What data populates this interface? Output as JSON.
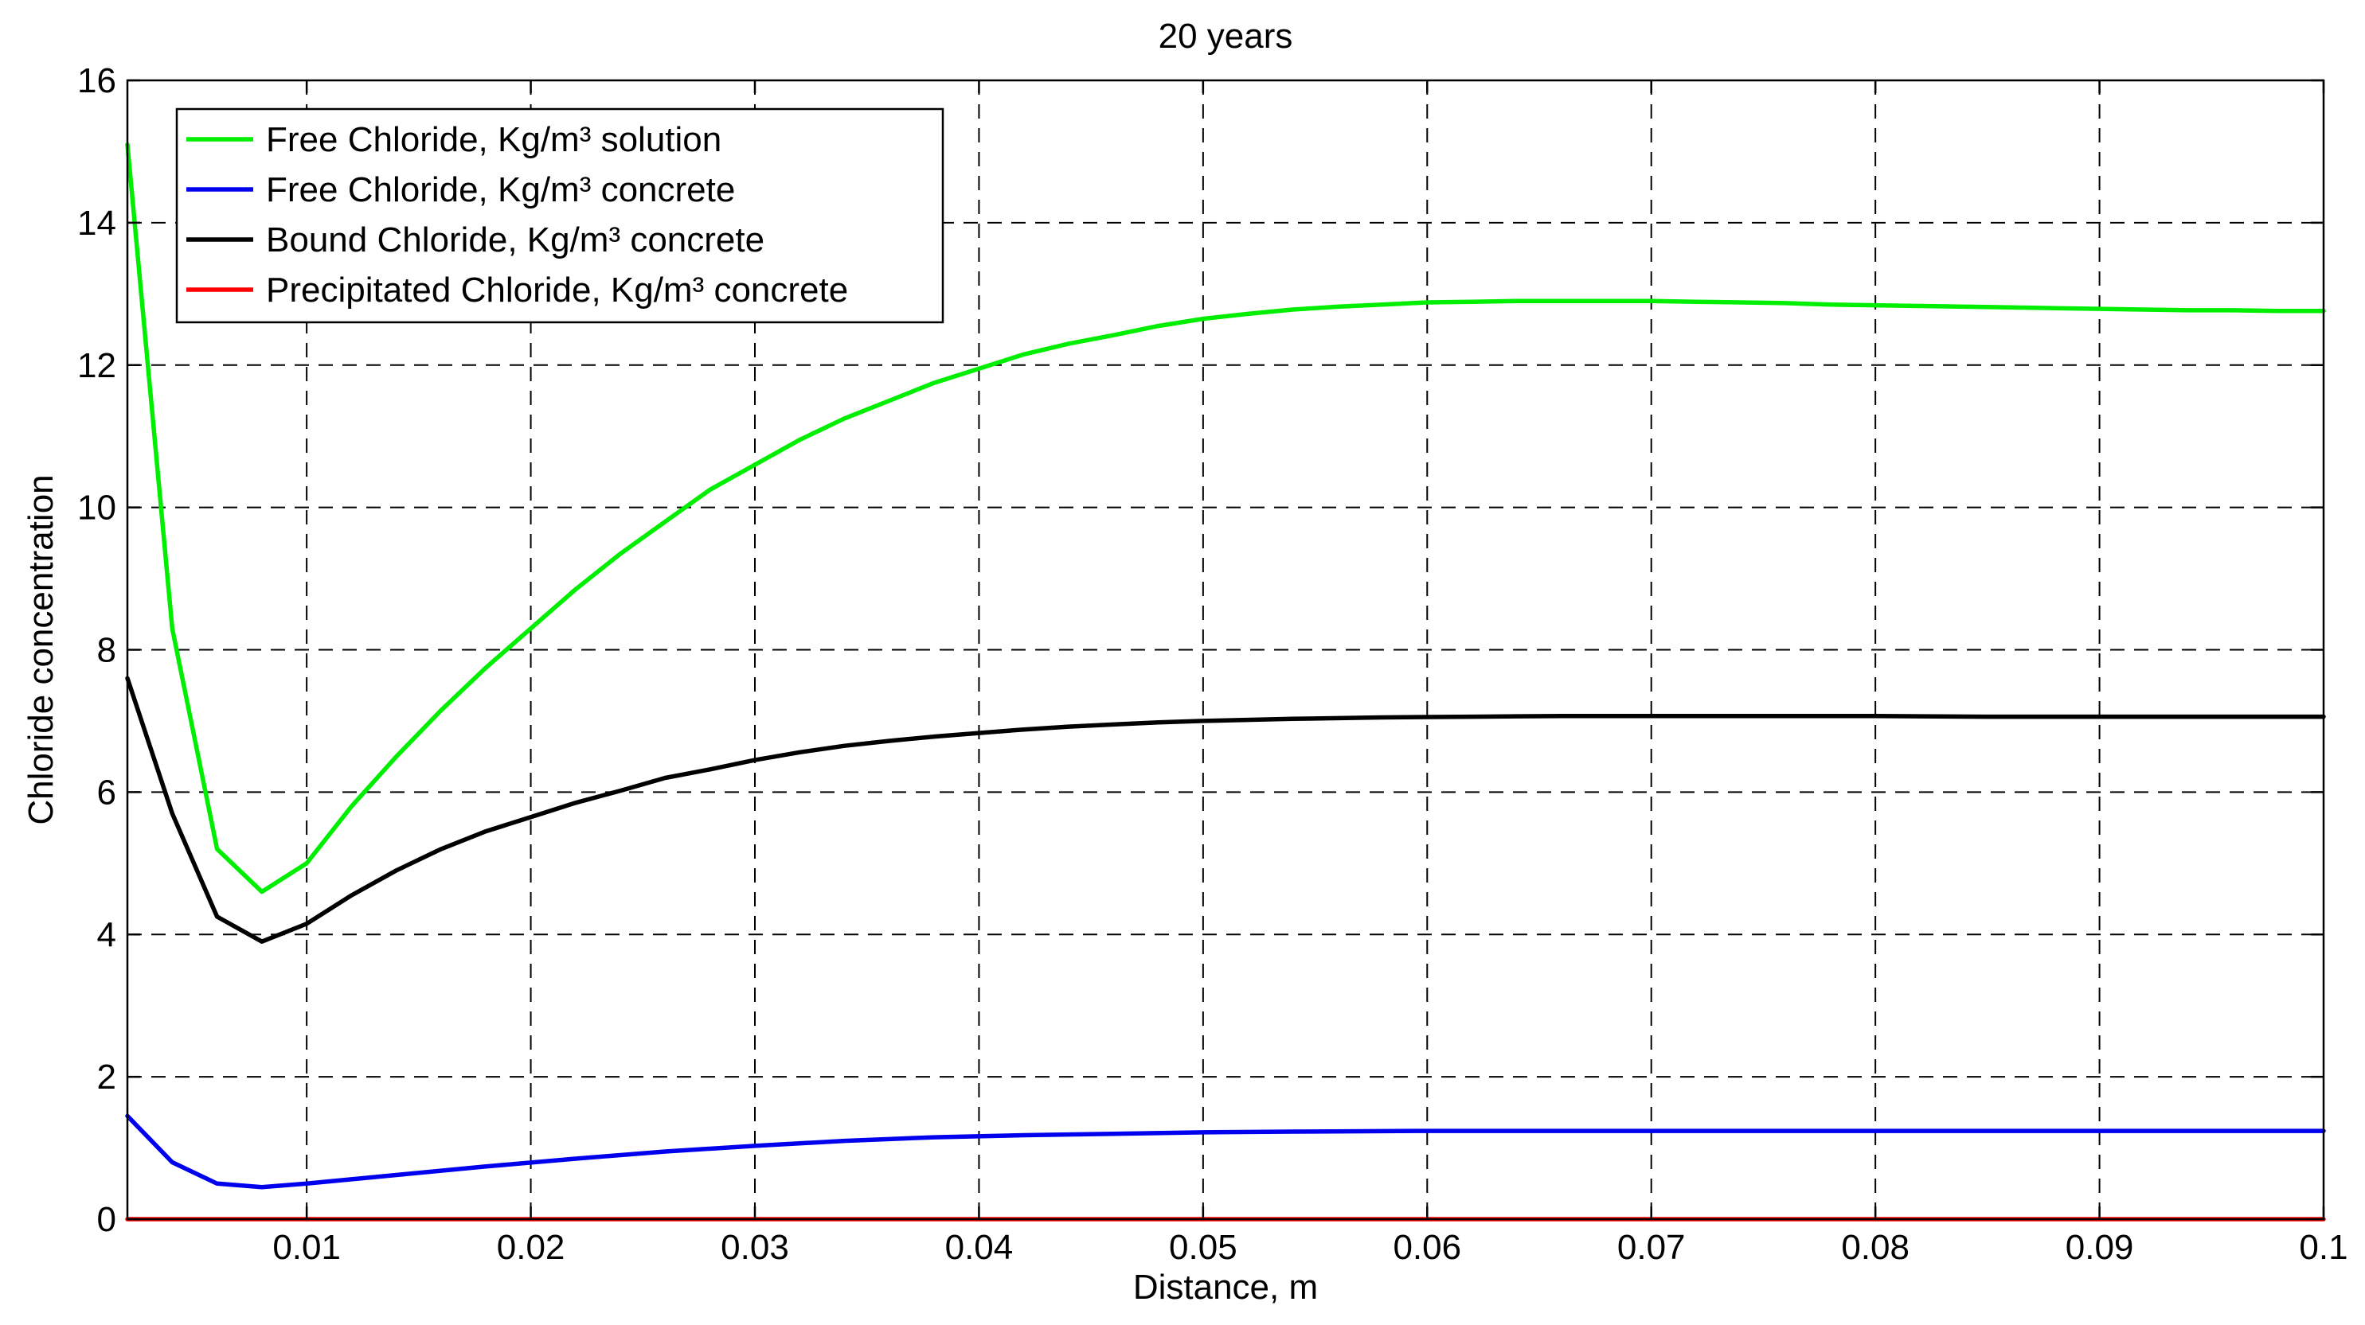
{
  "chart_data": {
    "type": "line",
    "title": "20 years",
    "xlabel": "Distance, m",
    "ylabel": "Chloride concentration",
    "xlim": [
      0.002,
      0.1
    ],
    "ylim": [
      0,
      16
    ],
    "x_ticks": [
      0.01,
      0.02,
      0.03,
      0.04,
      0.05,
      0.06,
      0.07,
      0.08,
      0.09,
      0.1
    ],
    "x_tick_labels": [
      "0.01",
      "0.02",
      "0.03",
      "0.04",
      "0.05",
      "0.06",
      "0.07",
      "0.08",
      "0.09",
      "0.1"
    ],
    "y_ticks": [
      0,
      2,
      4,
      6,
      8,
      10,
      12,
      14,
      16
    ],
    "y_tick_labels": [
      "0",
      "2",
      "4",
      "6",
      "8",
      "10",
      "12",
      "14",
      "16"
    ],
    "grid": true,
    "legend_position": "top-left",
    "series": [
      {
        "name": "Free Chloride, Kg/m³ solution",
        "color": "#00ee00",
        "x": [
          0.002,
          0.004,
          0.006,
          0.008,
          0.01,
          0.012,
          0.014,
          0.016,
          0.018,
          0.02,
          0.022,
          0.024,
          0.026,
          0.028,
          0.03,
          0.032,
          0.034,
          0.036,
          0.038,
          0.04,
          0.042,
          0.044,
          0.046,
          0.048,
          0.05,
          0.052,
          0.054,
          0.056,
          0.058,
          0.06,
          0.062,
          0.064,
          0.066,
          0.068,
          0.07,
          0.072,
          0.074,
          0.076,
          0.078,
          0.08,
          0.082,
          0.084,
          0.086,
          0.088,
          0.09,
          0.092,
          0.094,
          0.096,
          0.098,
          0.1
        ],
        "y": [
          15.1,
          8.3,
          5.2,
          4.6,
          5.0,
          5.8,
          6.5,
          7.15,
          7.75,
          8.3,
          8.85,
          9.35,
          9.8,
          10.25,
          10.6,
          10.95,
          11.25,
          11.5,
          11.75,
          11.95,
          12.15,
          12.3,
          12.42,
          12.55,
          12.65,
          12.72,
          12.78,
          12.82,
          12.85,
          12.88,
          12.89,
          12.9,
          12.9,
          12.9,
          12.9,
          12.89,
          12.88,
          12.87,
          12.85,
          12.84,
          12.83,
          12.82,
          12.81,
          12.8,
          12.79,
          12.78,
          12.77,
          12.77,
          12.76,
          12.76
        ]
      },
      {
        "name": "Free Chloride, Kg/m³ concrete",
        "color": "#0000ee",
        "x": [
          0.002,
          0.004,
          0.006,
          0.008,
          0.01,
          0.014,
          0.018,
          0.022,
          0.026,
          0.03,
          0.034,
          0.038,
          0.042,
          0.046,
          0.05,
          0.054,
          0.06,
          0.07,
          0.08,
          0.09,
          0.1
        ],
        "y": [
          1.45,
          0.8,
          0.5,
          0.45,
          0.5,
          0.62,
          0.74,
          0.85,
          0.95,
          1.03,
          1.1,
          1.15,
          1.18,
          1.2,
          1.22,
          1.23,
          1.24,
          1.24,
          1.24,
          1.24,
          1.24
        ]
      },
      {
        "name": "Bound Chloride, Kg/m³ concrete",
        "color": "#000000",
        "x": [
          0.002,
          0.004,
          0.006,
          0.008,
          0.01,
          0.012,
          0.014,
          0.016,
          0.018,
          0.02,
          0.022,
          0.024,
          0.026,
          0.028,
          0.03,
          0.032,
          0.034,
          0.036,
          0.038,
          0.04,
          0.042,
          0.044,
          0.046,
          0.048,
          0.05,
          0.054,
          0.058,
          0.062,
          0.066,
          0.07,
          0.075,
          0.08,
          0.085,
          0.09,
          0.095,
          0.1
        ],
        "y": [
          7.6,
          5.7,
          4.25,
          3.9,
          4.15,
          4.55,
          4.9,
          5.2,
          5.45,
          5.65,
          5.85,
          6.02,
          6.2,
          6.32,
          6.45,
          6.56,
          6.65,
          6.72,
          6.78,
          6.83,
          6.88,
          6.92,
          6.95,
          6.98,
          7.0,
          7.03,
          7.05,
          7.06,
          7.07,
          7.07,
          7.07,
          7.07,
          7.06,
          7.06,
          7.06,
          7.06
        ]
      },
      {
        "name": "Precipitated Chloride, Kg/m³ concrete",
        "color": "#ff0000",
        "x": [
          0.002,
          0.1
        ],
        "y": [
          0,
          0
        ]
      }
    ]
  }
}
